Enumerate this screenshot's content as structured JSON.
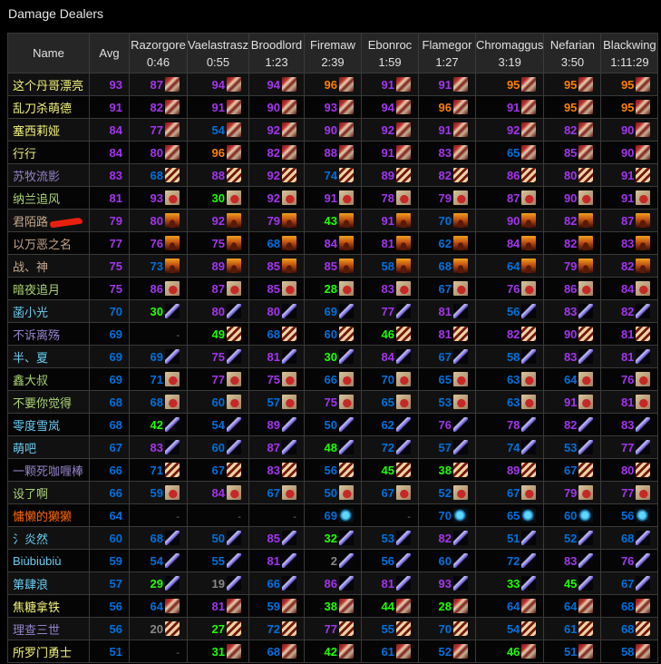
{
  "title": "Damage Dealers",
  "header": {
    "name": "Name",
    "avg": "Avg",
    "bosses": [
      {
        "name": "Razorgore",
        "time": "0:46"
      },
      {
        "name": "Vaelastrasz",
        "time": "0:55"
      },
      {
        "name": "Broodlord",
        "time": "1:23"
      },
      {
        "name": "Firemaw",
        "time": "2:39"
      },
      {
        "name": "Ebonroc",
        "time": "1:59"
      },
      {
        "name": "Flamegor",
        "time": "1:27"
      },
      {
        "name": "Chromaggus",
        "time": "3:19"
      },
      {
        "name": "Nefarian",
        "time": "3:50"
      },
      {
        "name": "Blackwing",
        "time": "1:11:29"
      }
    ]
  },
  "class_colors": {
    "warrior": "#c79c6e",
    "rogue": "#9482c9",
    "hunter": "#abd473",
    "warlock": "#c4a68a",
    "mage": "#69ccf0",
    "shaman": "#ff6600",
    "paladin": "#f2f27a"
  },
  "rank_colors": {
    "orange": "#ff8000",
    "purple": "#a335ee",
    "blue": "#0070dd",
    "green": "#1eff00",
    "gray": "#888888"
  },
  "rows": [
    {
      "name": "这个丹哥漂亮",
      "class": "paladin",
      "avg": "93",
      "icon": "warrior",
      "scores": [
        "87",
        "94",
        "94",
        "96",
        "91",
        "91",
        "95",
        "95",
        "95"
      ]
    },
    {
      "name": "乱刀杀萌德",
      "class": "paladin",
      "avg": "91",
      "icon": "warrior",
      "scores": [
        "82",
        "91",
        "90",
        "93",
        "94",
        "96",
        "91",
        "95",
        "95"
      ]
    },
    {
      "name": "塞西莉娅",
      "class": "paladin",
      "avg": "84",
      "icon": "warrior",
      "scores": [
        "77",
        "54",
        "92",
        "90",
        "92",
        "91",
        "92",
        "82",
        "90"
      ]
    },
    {
      "name": "行行",
      "class": "paladin",
      "avg": "84",
      "icon": "warrior",
      "scores": [
        "80",
        "96",
        "82",
        "88",
        "91",
        "83",
        "65",
        "85",
        "90"
      ]
    },
    {
      "name": "苏牧流影",
      "class": "rogue",
      "avg": "83",
      "icon": "rogue",
      "scores": [
        "68",
        "88",
        "92",
        "74",
        "89",
        "82",
        "86",
        "80",
        "91"
      ]
    },
    {
      "name": "纳兰追风",
      "class": "hunter",
      "avg": "81",
      "icon": "hunter",
      "scores": [
        "93",
        "30",
        "92",
        "91",
        "78",
        "79",
        "87",
        "90",
        "91"
      ]
    },
    {
      "name": "君陌路",
      "class": "warlock",
      "avg": "79",
      "icon": "warlock",
      "redacted": true,
      "scores": [
        "80",
        "92",
        "79",
        "43",
        "91",
        "70",
        "90",
        "82",
        "87"
      ]
    },
    {
      "name": "以万恶之名",
      "class": "warlock",
      "avg": "77",
      "icon": "warlock",
      "scores": [
        "76",
        "75",
        "68",
        "84",
        "81",
        "62",
        "84",
        "82",
        "83"
      ]
    },
    {
      "name": "战、神",
      "class": "warlock",
      "avg": "75",
      "icon": "warlock",
      "scores": [
        "73",
        "89",
        "85",
        "85",
        "58",
        "68",
        "64",
        "79",
        "82"
      ]
    },
    {
      "name": "暗夜追月",
      "class": "hunter",
      "avg": "75",
      "icon": "hunter",
      "scores": [
        "86",
        "87",
        "85",
        "28",
        "83",
        "67",
        "76",
        "86",
        "84"
      ]
    },
    {
      "name": "菡小光",
      "class": "mage",
      "avg": "70",
      "icon": "mage",
      "scores": [
        "30",
        "80",
        "80",
        "69",
        "77",
        "81",
        "56",
        "83",
        "82"
      ]
    },
    {
      "name": "不诉离殇",
      "class": "rogue",
      "avg": "69",
      "icon": "rogue",
      "scores": [
        "-",
        "49",
        "68",
        "60",
        "46",
        "81",
        "82",
        "90",
        "81"
      ]
    },
    {
      "name": "半、夏",
      "class": "mage",
      "avg": "69",
      "icon": "mage",
      "scores": [
        "69",
        "75",
        "81",
        "30",
        "84",
        "67",
        "58",
        "83",
        "81"
      ]
    },
    {
      "name": "鑫大叔",
      "class": "hunter",
      "avg": "69",
      "icon": "hunter",
      "scores": [
        "71",
        "77",
        "75",
        "66",
        "70",
        "65",
        "63",
        "64",
        "76"
      ]
    },
    {
      "name": "不要你觉得",
      "class": "hunter",
      "avg": "68",
      "icon": "hunter",
      "scores": [
        "68",
        "60",
        "57",
        "75",
        "65",
        "53",
        "63",
        "91",
        "81"
      ]
    },
    {
      "name": "零度雪岚",
      "class": "mage",
      "avg": "68",
      "icon": "mage",
      "scores": [
        "42",
        "54",
        "89",
        "50",
        "62",
        "76",
        "78",
        "82",
        "83"
      ]
    },
    {
      "name": "萌吧",
      "class": "mage",
      "avg": "67",
      "icon": "mage",
      "scores": [
        "83",
        "60",
        "87",
        "48",
        "72",
        "57",
        "74",
        "53",
        "77"
      ]
    },
    {
      "name": "一颗死咖喱棒",
      "class": "rogue",
      "avg": "66",
      "icon": "rogue",
      "scores": [
        "71",
        "67",
        "83",
        "56",
        "45",
        "38",
        "89",
        "67",
        "80"
      ]
    },
    {
      "name": "设了啊",
      "class": "hunter",
      "avg": "66",
      "icon": "hunter",
      "scores": [
        "59",
        "84",
        "67",
        "50",
        "67",
        "52",
        "67",
        "79",
        "77"
      ]
    },
    {
      "name": "慵懒的獭獭",
      "class": "shaman",
      "avg": "64",
      "icon": "shaman",
      "scores": [
        "-",
        "-",
        "-",
        "69",
        "-",
        "70",
        "65",
        "60",
        "56"
      ]
    },
    {
      "name": "氵炎然",
      "class": "mage",
      "avg": "60",
      "icon": "mage",
      "scores": [
        "68",
        "50",
        "85",
        "32",
        "53",
        "82",
        "51",
        "52",
        "68"
      ]
    },
    {
      "name": "Biùbiùbiù",
      "class": "mage",
      "avg": "59",
      "icon": "mage",
      "scores": [
        "54",
        "55",
        "81",
        "2",
        "56",
        "60",
        "72",
        "83",
        "76"
      ]
    },
    {
      "name": "第肆浪",
      "class": "mage",
      "avg": "57",
      "icon": "mage",
      "scores": [
        "29",
        "19",
        "66",
        "86",
        "81",
        "93",
        "33",
        "45",
        "67"
      ]
    },
    {
      "name": "焦糖拿铁",
      "class": "paladin",
      "avg": "56",
      "icon": "warrior",
      "scores": [
        "64",
        "81",
        "59",
        "38",
        "44",
        "28",
        "64",
        "64",
        "68"
      ]
    },
    {
      "name": "理查三世",
      "class": "rogue",
      "avg": "56",
      "icon": "rogue",
      "scores": [
        "20",
        "27",
        "72",
        "77",
        "55",
        "70",
        "54",
        "61",
        "68"
      ]
    },
    {
      "name": "所罗门勇士",
      "class": "paladin",
      "avg": "51",
      "icon": "warrior",
      "scores": [
        "-",
        "31",
        "68",
        "42",
        "61",
        "52",
        "46",
        "51",
        "58"
      ]
    }
  ]
}
